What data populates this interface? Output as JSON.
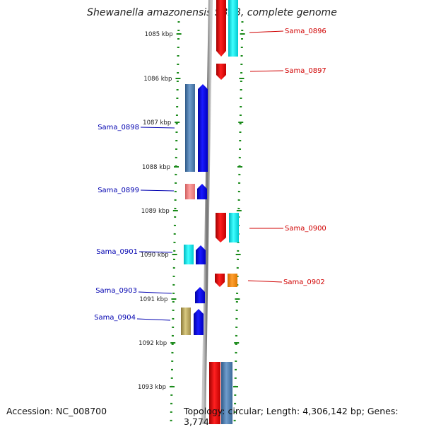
{
  "title": "Shewanella amazonensis SB2B, complete genome",
  "footer": {
    "accession": "Accession: NC_008700",
    "topology": "Topology: circular; Length: 4,306,142 bp; Genes: 3,774"
  },
  "ruler": [
    "1085 kbp",
    "1086 kbp",
    "1087 kbp",
    "1088 kbp",
    "1089 kbp",
    "1090 kbp",
    "1091 kbp",
    "1092 kbp",
    "1093 kbp"
  ],
  "genes_right": [
    {
      "label": "Sama_0896",
      "color": "#d00000"
    },
    {
      "label": "Sama_0897",
      "color": "#d00000"
    },
    {
      "label": "Sama_0900",
      "color": "#d00000"
    },
    {
      "label": "Sama_0902",
      "color": "#d00000"
    }
  ],
  "genes_left": [
    {
      "label": "Sama_0898",
      "color": "#0000b0"
    },
    {
      "label": "Sama_0899",
      "color": "#0000b0"
    },
    {
      "label": "Sama_0901",
      "color": "#0000b0"
    },
    {
      "label": "Sama_0903",
      "color": "#0000b0"
    },
    {
      "label": "Sama_0904",
      "color": "#0000b0"
    }
  ],
  "colors": {
    "forward_cds": "#ff0000",
    "reverse_cds": "#0000ff",
    "forward_rna": "#00e5ee",
    "reverse_rna": "#4a7fb5",
    "pink": "#f08080",
    "khaki": "#b8a35a",
    "orange": "#ff8c00",
    "ticks": "#1a8a1a",
    "backbone": "#888888"
  }
}
